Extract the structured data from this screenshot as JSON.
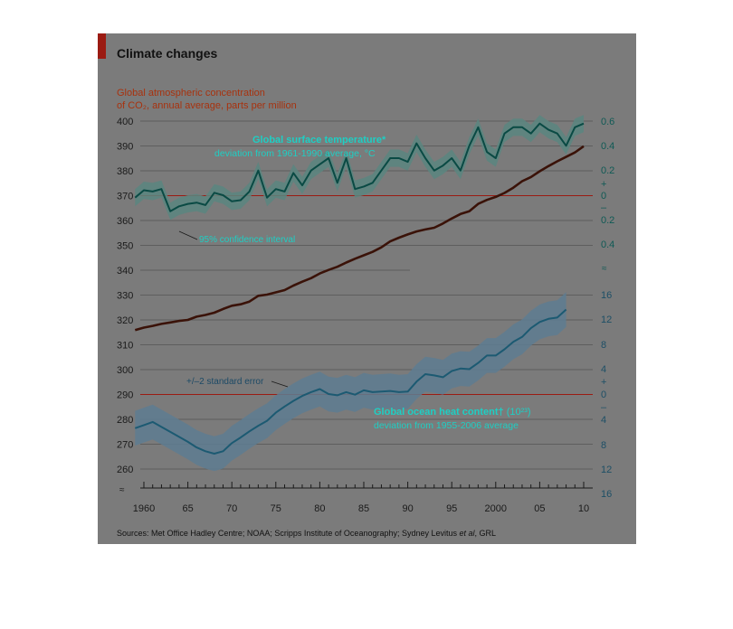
{
  "title": "Climate changes",
  "source": "Sources: Met Office Hadley Centre; NOAA; Scripps Institute of Oceanography; Sydney Levitus",
  "source_em": "et al",
  "source_tail": ", GRL",
  "colors": {
    "background": "#7b7b7b",
    "co2": "#3a1208",
    "temperature": "#0a4a44",
    "temperature_label": "#1ecfc4",
    "temperature_band": "#5a8680",
    "ocean": "#1c5a72",
    "ocean_band": "#5e7d92",
    "zero_line": "#9b1b12",
    "co2_label": "#a8320e",
    "right_axis": "#0f5a55",
    "ocean_axis": "#1d4f66"
  },
  "chart_data": [
    {
      "type": "line",
      "name": "co2",
      "title": "Global atmospheric concentration",
      "subtitle": "of CO₂, annual average, parts per million",
      "x_ticks": [
        "1960",
        "65",
        "70",
        "75",
        "80",
        "85",
        "90",
        "95",
        "2000",
        "05",
        "10"
      ],
      "y_ticks": [
        "400",
        "390",
        "380",
        "370",
        "360",
        "350",
        "340",
        "330",
        "320",
        "310",
        "300",
        "290",
        "280",
        "270",
        "260"
      ],
      "ylim": [
        255,
        400
      ],
      "x": [
        1959,
        1960,
        1961,
        1962,
        1963,
        1964,
        1965,
        1966,
        1967,
        1968,
        1969,
        1970,
        1971,
        1972,
        1973,
        1974,
        1975,
        1976,
        1977,
        1978,
        1979,
        1980,
        1981,
        1982,
        1983,
        1984,
        1985,
        1986,
        1987,
        1988,
        1989,
        1990,
        1991,
        1992,
        1993,
        1994,
        1995,
        1996,
        1997,
        1998,
        1999,
        2000,
        2001,
        2002,
        2003,
        2004,
        2005,
        2006,
        2007,
        2008,
        2009,
        2010
      ],
      "values": [
        315.9,
        316.9,
        317.6,
        318.4,
        319.0,
        319.6,
        320.0,
        321.3,
        322.0,
        322.9,
        324.4,
        325.7,
        326.3,
        327.4,
        329.7,
        330.2,
        331.1,
        332.0,
        333.8,
        335.4,
        336.8,
        338.7,
        340.1,
        341.4,
        343.1,
        344.6,
        346.0,
        347.4,
        349.2,
        351.6,
        353.1,
        354.4,
        355.6,
        356.4,
        357.1,
        358.8,
        360.8,
        362.6,
        363.7,
        366.7,
        368.3,
        369.5,
        371.1,
        373.2,
        375.8,
        377.5,
        379.8,
        381.9,
        383.8,
        385.6,
        387.4,
        389.9
      ]
    },
    {
      "type": "line",
      "name": "temperature",
      "title": "Global surface temperature*",
      "subtitle": "deviation from 1961-1990 average, °C",
      "band_label": "95% confidence interval",
      "y_ticks": [
        "0.6",
        "0.4",
        "0.2",
        "+",
        "0",
        "–",
        "0.2",
        "0.4"
      ],
      "ylim": [
        -0.4,
        0.6
      ],
      "x": [
        1959,
        1960,
        1961,
        1962,
        1963,
        1964,
        1965,
        1966,
        1967,
        1968,
        1969,
        1970,
        1971,
        1972,
        1973,
        1974,
        1975,
        1976,
        1977,
        1978,
        1979,
        1980,
        1981,
        1982,
        1983,
        1984,
        1985,
        1986,
        1987,
        1988,
        1989,
        1990,
        1991,
        1992,
        1993,
        1994,
        1995,
        1996,
        1997,
        1998,
        1999,
        2000,
        2001,
        2002,
        2003,
        2004,
        2005,
        2006,
        2007,
        2008,
        2009,
        2010
      ],
      "values": [
        -0.02,
        0.04,
        0.03,
        0.05,
        -0.13,
        -0.09,
        -0.07,
        -0.06,
        -0.08,
        0.02,
        0.0,
        -0.05,
        -0.04,
        0.03,
        0.2,
        -0.02,
        0.05,
        0.03,
        0.18,
        0.08,
        0.2,
        0.25,
        0.3,
        0.1,
        0.3,
        0.05,
        0.07,
        0.1,
        0.2,
        0.3,
        0.3,
        0.27,
        0.42,
        0.3,
        0.2,
        0.24,
        0.3,
        0.2,
        0.4,
        0.55,
        0.35,
        0.3,
        0.5,
        0.55,
        0.55,
        0.5,
        0.58,
        0.53,
        0.5,
        0.4,
        0.55,
        0.58
      ]
    },
    {
      "type": "line",
      "name": "ocean",
      "title": "Global ocean heat content†",
      "title_unit": "(10²³)",
      "subtitle": "deviation from 1955-2006 average",
      "band_label": "+/–2 standard error",
      "y_ticks": [
        "16",
        "12",
        "8",
        "4",
        "+",
        "0",
        "–",
        "4",
        "8",
        "12",
        "16"
      ],
      "ylim": [
        -16,
        16
      ],
      "x": [
        1959,
        1960,
        1961,
        1962,
        1963,
        1964,
        1965,
        1966,
        1967,
        1968,
        1969,
        1970,
        1971,
        1972,
        1973,
        1974,
        1975,
        1976,
        1977,
        1978,
        1979,
        1980,
        1981,
        1982,
        1983,
        1984,
        1985,
        1986,
        1987,
        1988,
        1989,
        1990,
        1991,
        1992,
        1993,
        1994,
        1995,
        1996,
        1997,
        1998,
        1999,
        2000,
        2001,
        2002,
        2003,
        2004,
        2005,
        2006,
        2007,
        2008
      ],
      "values": [
        -5.5,
        -5.0,
        -4.5,
        -5.3,
        -6.1,
        -6.9,
        -7.7,
        -8.6,
        -9.2,
        -9.6,
        -9.2,
        -7.9,
        -7.0,
        -6.0,
        -5.1,
        -4.3,
        -3.0,
        -2.0,
        -1.1,
        -0.3,
        0.3,
        0.8,
        0.0,
        -0.2,
        0.3,
        -0.1,
        0.6,
        0.3,
        0.4,
        0.5,
        0.3,
        0.4,
        2.0,
        3.2,
        3.0,
        2.7,
        3.7,
        4.1,
        4.0,
        5.0,
        6.2,
        6.2,
        7.2,
        8.4,
        9.2,
        10.6,
        11.6,
        12.1,
        12.3,
        13.6
      ]
    }
  ]
}
